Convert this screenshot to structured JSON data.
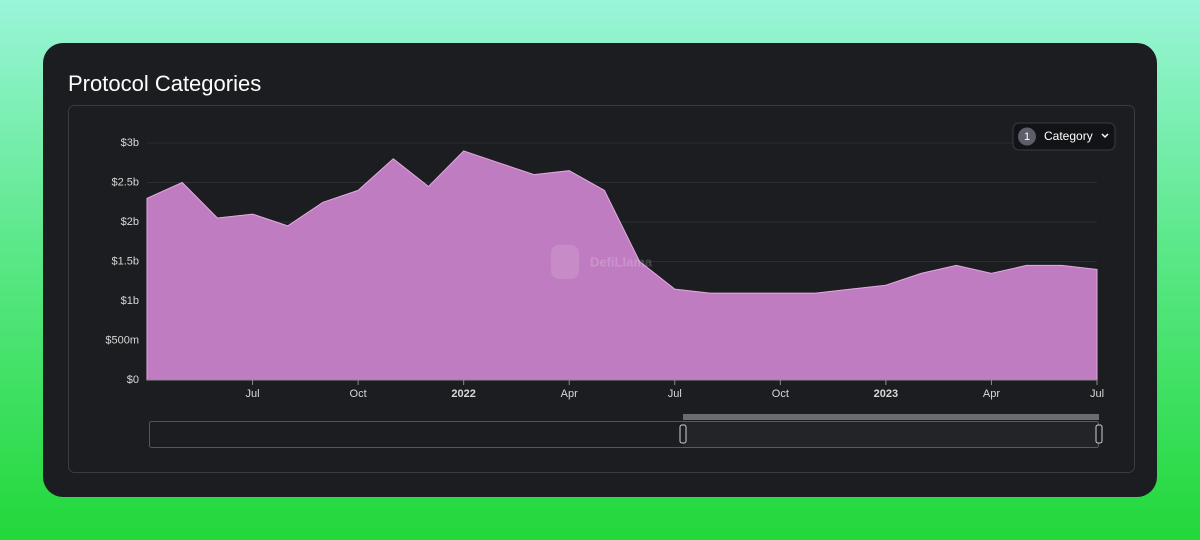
{
  "chart_data": {
    "type": "area",
    "title": "Protocol Categories",
    "x": [
      "2021-04",
      "2021-05",
      "2021-06",
      "2021-07",
      "2021-08",
      "2021-09",
      "2021-10",
      "2021-11",
      "2021-12",
      "2022-01",
      "2022-02",
      "2022-03",
      "2022-04",
      "2022-05",
      "2022-06",
      "2022-07",
      "2022-08",
      "2022-09",
      "2022-10",
      "2022-11",
      "2022-12",
      "2023-01",
      "2023-02",
      "2023-03",
      "2023-04",
      "2023-05",
      "2023-06",
      "2023-07"
    ],
    "values": [
      2300000000,
      2500000000,
      2050000000,
      2100000000,
      1950000000,
      2250000000,
      2400000000,
      2800000000,
      2450000000,
      2900000000,
      2750000000,
      2600000000,
      2650000000,
      2400000000,
      1500000000,
      1150000000,
      1100000000,
      1100000000,
      1100000000,
      1100000000,
      1150000000,
      1200000000,
      1350000000,
      1450000000,
      1350000000,
      1450000000,
      1450000000,
      1400000000
    ],
    "color": "#c07cc0",
    "xlim": [
      "2021-04",
      "2023-07"
    ],
    "xticks": [
      {
        "value": "2021-07",
        "label": "Jul"
      },
      {
        "value": "2021-10",
        "label": "Oct"
      },
      {
        "value": "2022-01",
        "label": "2022"
      },
      {
        "value": "2022-04",
        "label": "Apr"
      },
      {
        "value": "2022-07",
        "label": "Jul"
      },
      {
        "value": "2022-10",
        "label": "Oct"
      },
      {
        "value": "2023-01",
        "label": "2023"
      },
      {
        "value": "2023-04",
        "label": "Apr"
      },
      {
        "value": "2023-07",
        "label": "Jul"
      }
    ],
    "ylim": [
      0,
      3000000000
    ],
    "yticks": [
      {
        "value": 0,
        "label": "$0"
      },
      {
        "value": 500000000,
        "label": "$500m"
      },
      {
        "value": 1000000000,
        "label": "$1b"
      },
      {
        "value": 1500000000,
        "label": "$1.5b"
      },
      {
        "value": 2000000000,
        "label": "$2b"
      },
      {
        "value": 2500000000,
        "label": "$2.5b"
      },
      {
        "value": 3000000000,
        "label": "$3b"
      }
    ],
    "grid": true
  },
  "controls": {
    "selected_count": 1,
    "label": "Category"
  },
  "watermark": "DefiLlama"
}
